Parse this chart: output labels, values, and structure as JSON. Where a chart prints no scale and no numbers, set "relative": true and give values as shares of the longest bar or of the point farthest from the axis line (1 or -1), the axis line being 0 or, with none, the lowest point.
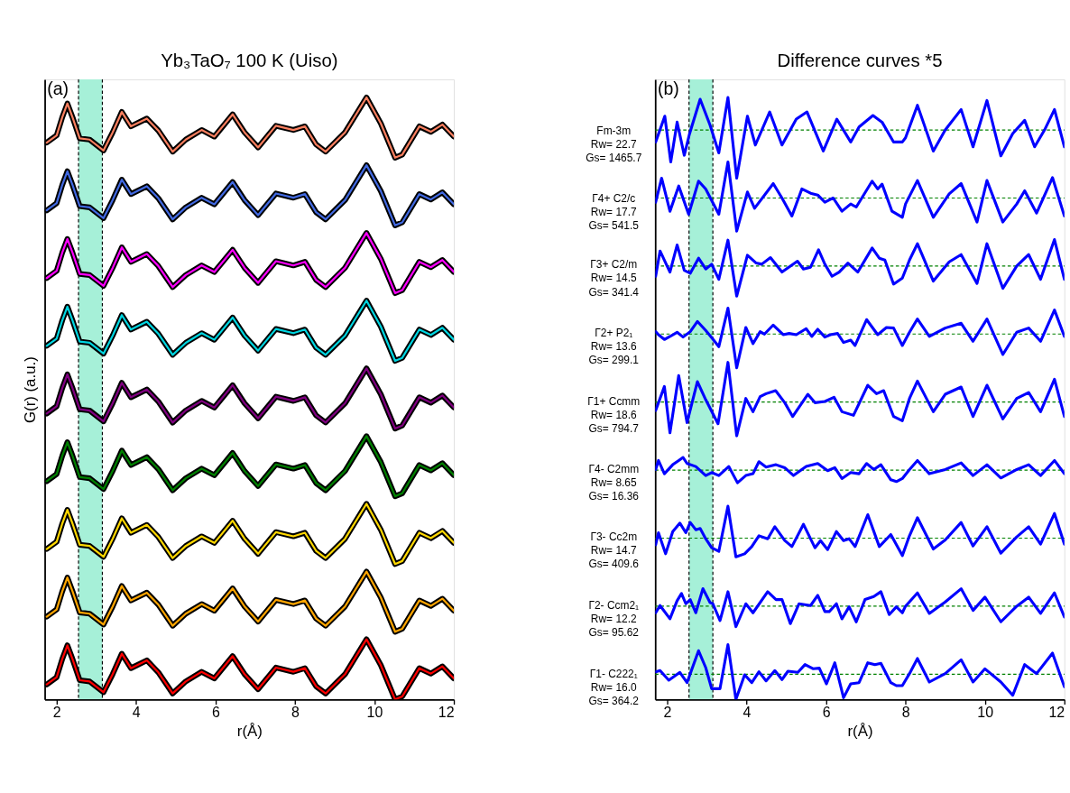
{
  "chart_data": [
    {
      "type": "line",
      "title": "Yb₃TaO₇ 100 K (Uiso)",
      "xlabel": "r(Å)",
      "ylabel": "G(r) (a.u.)",
      "relative": true,
      "xlim": [
        1.7,
        12
      ],
      "xticks": [
        2,
        4,
        6,
        8,
        10,
        12
      ],
      "annotations": [
        "(a)"
      ],
      "bands": [
        {
          "axis": "x",
          "from": 2.55,
          "to": 3.15,
          "color": "#a6f0d8"
        }
      ],
      "ref_lines": [
        {
          "axis": "x",
          "value": 2.55,
          "color": "#000000",
          "line_style": "dashed"
        },
        {
          "axis": "x",
          "value": 3.15,
          "color": "#000000",
          "line_style": "dashed"
        }
      ],
      "x": [
        1.75,
        2.0,
        2.14,
        2.27,
        2.4,
        2.58,
        2.83,
        3.18,
        3.41,
        3.64,
        3.87,
        4.27,
        4.56,
        4.92,
        5.25,
        5.65,
        5.97,
        6.43,
        6.73,
        7.07,
        7.52,
        7.96,
        8.25,
        8.53,
        8.77,
        9.26,
        9.8,
        10.16,
        10.52,
        10.7,
        11.13,
        11.42,
        11.71,
        12.0
      ],
      "series": [
        {
          "color": "#000000",
          "values": [
            0.925,
            0.937,
            0.967,
            0.99,
            0.967,
            0.932,
            0.93,
            0.912,
            0.942,
            0.976,
            0.952,
            0.965,
            0.945,
            0.91,
            0.93,
            0.946,
            0.935,
            0.972,
            0.942,
            0.917,
            0.953,
            0.946,
            0.952,
            0.922,
            0.91,
            0.942,
            1.0,
            0.957,
            0.9,
            0.905,
            0.952,
            0.943,
            0.955,
            0.935
          ]
        },
        {
          "color": "#fa7f5f",
          "values": [
            0.925,
            0.937,
            0.967,
            0.99,
            0.967,
            0.932,
            0.93,
            0.912,
            0.942,
            0.976,
            0.952,
            0.965,
            0.945,
            0.91,
            0.93,
            0.946,
            0.935,
            0.972,
            0.942,
            0.917,
            0.953,
            0.946,
            0.952,
            0.922,
            0.91,
            0.942,
            1.0,
            0.957,
            0.9,
            0.905,
            0.952,
            0.943,
            0.955,
            0.935
          ]
        },
        {
          "color": "#000000",
          "values": [
            0.8125,
            0.8245,
            0.8545,
            0.8775,
            0.8545,
            0.8195,
            0.8175,
            0.7995,
            0.8295,
            0.8635,
            0.8395,
            0.8525,
            0.8325,
            0.7975,
            0.8175,
            0.8335,
            0.8225,
            0.8595,
            0.8295,
            0.8045,
            0.8405,
            0.8335,
            0.8395,
            0.8095,
            0.7975,
            0.8295,
            0.8875,
            0.8445,
            0.7875,
            0.7925,
            0.8395,
            0.8305,
            0.8425,
            0.8225
          ]
        },
        {
          "color": "#4169e1",
          "values": [
            0.8125,
            0.8245,
            0.8545,
            0.8775,
            0.8545,
            0.8195,
            0.8175,
            0.7995,
            0.8295,
            0.8635,
            0.8395,
            0.8525,
            0.8325,
            0.7975,
            0.8175,
            0.8335,
            0.8225,
            0.8595,
            0.8295,
            0.8045,
            0.8405,
            0.8335,
            0.8395,
            0.8095,
            0.7975,
            0.8295,
            0.8875,
            0.8445,
            0.7875,
            0.7925,
            0.8395,
            0.8305,
            0.8425,
            0.8225
          ]
        },
        {
          "color": "#000000",
          "values": [
            0.7,
            0.712,
            0.742,
            0.765,
            0.742,
            0.707,
            0.705,
            0.687,
            0.717,
            0.751,
            0.727,
            0.74,
            0.72,
            0.685,
            0.705,
            0.721,
            0.71,
            0.747,
            0.717,
            0.692,
            0.728,
            0.721,
            0.727,
            0.697,
            0.685,
            0.717,
            0.775,
            0.732,
            0.675,
            0.68,
            0.727,
            0.718,
            0.73,
            0.71
          ]
        },
        {
          "color": "#ff00ff",
          "values": [
            0.7,
            0.712,
            0.742,
            0.765,
            0.742,
            0.707,
            0.705,
            0.687,
            0.717,
            0.751,
            0.727,
            0.74,
            0.72,
            0.685,
            0.705,
            0.721,
            0.71,
            0.747,
            0.717,
            0.692,
            0.728,
            0.721,
            0.727,
            0.697,
            0.685,
            0.717,
            0.775,
            0.732,
            0.675,
            0.68,
            0.727,
            0.718,
            0.73,
            0.71
          ]
        },
        {
          "color": "#000000",
          "values": [
            0.5875,
            0.5995,
            0.6295,
            0.6525,
            0.6295,
            0.5945,
            0.5925,
            0.5745,
            0.6045,
            0.6385,
            0.6145,
            0.6275,
            0.6075,
            0.5725,
            0.5925,
            0.6085,
            0.5975,
            0.6345,
            0.6045,
            0.5795,
            0.6155,
            0.6085,
            0.6145,
            0.5845,
            0.5725,
            0.6045,
            0.6625,
            0.6195,
            0.5625,
            0.5675,
            0.6145,
            0.6055,
            0.6175,
            0.5975
          ]
        },
        {
          "color": "#00d5e0",
          "values": [
            0.5875,
            0.5995,
            0.6295,
            0.6525,
            0.6295,
            0.5945,
            0.5925,
            0.5745,
            0.6045,
            0.6385,
            0.6145,
            0.6275,
            0.6075,
            0.5725,
            0.5925,
            0.6085,
            0.5975,
            0.6345,
            0.6045,
            0.5795,
            0.6155,
            0.6085,
            0.6145,
            0.5845,
            0.5725,
            0.6045,
            0.6625,
            0.6195,
            0.5625,
            0.5675,
            0.6145,
            0.6055,
            0.6175,
            0.5975
          ]
        },
        {
          "color": "#000000",
          "values": [
            0.475,
            0.487,
            0.517,
            0.54,
            0.517,
            0.482,
            0.48,
            0.462,
            0.492,
            0.526,
            0.502,
            0.515,
            0.495,
            0.46,
            0.48,
            0.496,
            0.485,
            0.522,
            0.492,
            0.467,
            0.503,
            0.496,
            0.502,
            0.472,
            0.46,
            0.492,
            0.55,
            0.507,
            0.45,
            0.455,
            0.502,
            0.493,
            0.505,
            0.485
          ]
        },
        {
          "color": "#800080",
          "values": [
            0.475,
            0.487,
            0.517,
            0.54,
            0.517,
            0.482,
            0.48,
            0.462,
            0.492,
            0.526,
            0.502,
            0.515,
            0.495,
            0.46,
            0.48,
            0.496,
            0.485,
            0.522,
            0.492,
            0.467,
            0.503,
            0.496,
            0.502,
            0.472,
            0.46,
            0.492,
            0.55,
            0.507,
            0.45,
            0.455,
            0.502,
            0.493,
            0.505,
            0.485
          ]
        },
        {
          "color": "#000000",
          "values": [
            0.3625,
            0.3745,
            0.4045,
            0.4275,
            0.4045,
            0.3695,
            0.3675,
            0.3495,
            0.3795,
            0.4135,
            0.3895,
            0.4025,
            0.3825,
            0.3475,
            0.3675,
            0.3835,
            0.3725,
            0.4095,
            0.3795,
            0.3545,
            0.3905,
            0.3835,
            0.3895,
            0.3595,
            0.3475,
            0.3795,
            0.4375,
            0.3945,
            0.3375,
            0.3425,
            0.3895,
            0.3805,
            0.3925,
            0.3725
          ]
        },
        {
          "color": "#008000",
          "values": [
            0.3625,
            0.3745,
            0.4045,
            0.4275,
            0.4045,
            0.3695,
            0.3675,
            0.3495,
            0.3795,
            0.4135,
            0.3895,
            0.4025,
            0.3825,
            0.3475,
            0.3675,
            0.3835,
            0.3725,
            0.4095,
            0.3795,
            0.3545,
            0.3905,
            0.3835,
            0.3895,
            0.3595,
            0.3475,
            0.3795,
            0.4375,
            0.3945,
            0.3375,
            0.3425,
            0.3895,
            0.3805,
            0.3925,
            0.3725
          ]
        },
        {
          "color": "#000000",
          "values": [
            0.25,
            0.262,
            0.292,
            0.315,
            0.292,
            0.257,
            0.255,
            0.237,
            0.267,
            0.301,
            0.277,
            0.29,
            0.27,
            0.235,
            0.255,
            0.271,
            0.26,
            0.297,
            0.267,
            0.242,
            0.278,
            0.271,
            0.277,
            0.247,
            0.235,
            0.267,
            0.325,
            0.282,
            0.225,
            0.23,
            0.277,
            0.268,
            0.28,
            0.26
          ]
        },
        {
          "color": "#ffd700",
          "values": [
            0.25,
            0.262,
            0.292,
            0.315,
            0.292,
            0.257,
            0.255,
            0.237,
            0.267,
            0.301,
            0.277,
            0.29,
            0.27,
            0.235,
            0.255,
            0.271,
            0.26,
            0.297,
            0.267,
            0.242,
            0.278,
            0.271,
            0.277,
            0.247,
            0.235,
            0.267,
            0.325,
            0.282,
            0.225,
            0.23,
            0.277,
            0.268,
            0.28,
            0.26
          ]
        },
        {
          "color": "#000000",
          "values": [
            0.1375,
            0.1495,
            0.1795,
            0.2025,
            0.1795,
            0.1445,
            0.1425,
            0.1245,
            0.1545,
            0.1885,
            0.1645,
            0.1775,
            0.1575,
            0.1225,
            0.1425,
            0.1585,
            0.1475,
            0.1845,
            0.1545,
            0.1295,
            0.1655,
            0.1585,
            0.1645,
            0.1345,
            0.1225,
            0.1545,
            0.2125,
            0.1695,
            0.1125,
            0.1175,
            0.1645,
            0.1555,
            0.1675,
            0.1475
          ]
        },
        {
          "color": "#ffa500",
          "values": [
            0.1375,
            0.1495,
            0.1795,
            0.2025,
            0.1795,
            0.1445,
            0.1425,
            0.1245,
            0.1545,
            0.1885,
            0.1645,
            0.1775,
            0.1575,
            0.1225,
            0.1425,
            0.1585,
            0.1475,
            0.1845,
            0.1545,
            0.1295,
            0.1655,
            0.1585,
            0.1645,
            0.1345,
            0.1225,
            0.1545,
            0.2125,
            0.1695,
            0.1125,
            0.1175,
            0.1645,
            0.1555,
            0.1675,
            0.1475
          ]
        },
        {
          "color": "#000000",
          "values": [
            0.025,
            0.037,
            0.067,
            0.09,
            0.067,
            0.032,
            0.03,
            0.012,
            0.042,
            0.076,
            0.052,
            0.065,
            0.045,
            0.01,
            0.03,
            0.046,
            0.035,
            0.072,
            0.042,
            0.017,
            0.053,
            0.046,
            0.052,
            0.022,
            0.01,
            0.042,
            0.1,
            0.057,
            0.0,
            0.005,
            0.052,
            0.043,
            0.055,
            0.035
          ]
        },
        {
          "color": "#ff0000",
          "values": [
            0.025,
            0.037,
            0.067,
            0.09,
            0.067,
            0.032,
            0.03,
            0.012,
            0.042,
            0.076,
            0.052,
            0.065,
            0.045,
            0.01,
            0.03,
            0.046,
            0.035,
            0.072,
            0.042,
            0.017,
            0.053,
            0.046,
            0.052,
            0.022,
            0.01,
            0.042,
            0.1,
            0.057,
            0.0,
            0.005,
            0.052,
            0.043,
            0.055,
            0.035
          ]
        }
      ]
    },
    {
      "type": "line",
      "title": "Difference curves *5",
      "xlabel": "r(Å)",
      "relative": true,
      "xlim": [
        1.7,
        12
      ],
      "xticks": [
        2,
        4,
        6,
        8,
        10,
        12
      ],
      "annotations": [
        "(b)"
      ],
      "bands": [
        {
          "axis": "x",
          "from": 2.55,
          "to": 3.15,
          "color": "#a6f0d8"
        }
      ],
      "ref_lines": [
        {
          "axis": "x",
          "value": 2.55,
          "color": "#000000",
          "line_style": "dashed"
        },
        {
          "axis": "x",
          "value": 3.15,
          "color": "#000000",
          "line_style": "dashed"
        },
        {
          "axis": "y",
          "value": 0.946,
          "color": "#008000",
          "line_style": "dashed"
        },
        {
          "axis": "y",
          "value": 0.833,
          "color": "#008000",
          "line_style": "dashed"
        },
        {
          "axis": "y",
          "value": 0.72,
          "color": "#008000",
          "line_style": "dashed"
        },
        {
          "axis": "y",
          "value": 0.607,
          "color": "#008000",
          "line_style": "dashed"
        },
        {
          "axis": "y",
          "value": 0.494,
          "color": "#008000",
          "line_style": "dashed"
        },
        {
          "axis": "y",
          "value": 0.381,
          "color": "#008000",
          "line_style": "dashed"
        },
        {
          "axis": "y",
          "value": 0.268,
          "color": "#008000",
          "line_style": "dashed"
        },
        {
          "axis": "y",
          "value": 0.155,
          "color": "#008000",
          "line_style": "dashed"
        },
        {
          "axis": "y",
          "value": 0.042,
          "color": "#008000",
          "line_style": "dashed"
        }
      ],
      "series": [
        {
          "name": "Fm-3m\nRw= 22.7\nGs= 1465.7",
          "color": "#0000ff",
          "x": [
            1.71,
            1.94,
            2.09,
            2.25,
            2.43,
            2.56,
            2.83,
            3.08,
            3.3,
            3.53,
            3.75,
            4.02,
            4.22,
            4.58,
            4.89,
            5.25,
            5.52,
            5.93,
            6.27,
            6.62,
            6.83,
            7.18,
            7.41,
            7.7,
            7.92,
            8.0,
            8.3,
            8.7,
            9.0,
            9.4,
            9.7,
            10.05,
            10.4,
            10.7,
            11.0,
            11.25,
            11.5,
            11.75,
            12.0
          ],
          "values": [
            0.926,
            0.969,
            0.893,
            0.959,
            0.904,
            0.939,
            0.997,
            0.954,
            0.908,
            1.0,
            0.866,
            0.969,
            0.921,
            0.976,
            0.921,
            0.964,
            0.976,
            0.911,
            0.964,
            0.926,
            0.951,
            0.97,
            0.959,
            0.926,
            0.926,
            0.933,
            0.987,
            0.911,
            0.946,
            0.98,
            0.918,
            0.995,
            0.903,
            0.94,
            0.962,
            0.918,
            0.946,
            0.98,
            0.918
          ]
        },
        {
          "name": "Γ4+ C2/c\nRw= 17.7\nGs= 541.5",
          "color": "#0000ff",
          "x": [
            1.71,
            1.86,
            2.07,
            2.29,
            2.54,
            2.79,
            2.97,
            3.3,
            3.53,
            3.75,
            4.02,
            4.2,
            4.67,
            4.89,
            5.14,
            5.39,
            5.61,
            5.79,
            5.97,
            6.18,
            6.4,
            6.62,
            6.76,
            7.16,
            7.3,
            7.41,
            7.66,
            7.92,
            8.0,
            8.3,
            8.7,
            9.1,
            9.4,
            9.8,
            10.05,
            10.45,
            10.8,
            11.0,
            11.3,
            11.7,
            12.0
          ],
          "values": [
            0.826,
            0.866,
            0.811,
            0.853,
            0.806,
            0.861,
            0.848,
            0.806,
            0.893,
            0.778,
            0.843,
            0.816,
            0.857,
            0.833,
            0.803,
            0.848,
            0.841,
            0.838,
            0.826,
            0.833,
            0.811,
            0.823,
            0.818,
            0.861,
            0.848,
            0.856,
            0.811,
            0.801,
            0.823,
            0.862,
            0.801,
            0.84,
            0.857,
            0.793,
            0.862,
            0.793,
            0.823,
            0.845,
            0.808,
            0.867,
            0.803
          ]
        },
        {
          "name": "Γ3+ C2/m\nRw= 14.5\nGs= 341.4",
          "color": "#0000ff",
          "x": [
            1.71,
            1.82,
            2.07,
            2.25,
            2.43,
            2.58,
            2.79,
            2.97,
            3.12,
            3.3,
            3.53,
            3.75,
            4.02,
            4.24,
            4.38,
            4.6,
            4.89,
            5.28,
            5.43,
            5.61,
            5.81,
            5.97,
            6.15,
            6.33,
            6.55,
            6.8,
            7.16,
            7.34,
            7.48,
            7.7,
            7.92,
            8.1,
            8.3,
            8.7,
            9.1,
            9.4,
            9.8,
            10.05,
            10.45,
            10.8,
            11.1,
            11.4,
            11.75,
            12.0
          ],
          "values": [
            0.703,
            0.745,
            0.71,
            0.755,
            0.713,
            0.708,
            0.733,
            0.715,
            0.723,
            0.698,
            0.763,
            0.67,
            0.738,
            0.725,
            0.723,
            0.734,
            0.71,
            0.728,
            0.715,
            0.718,
            0.747,
            0.723,
            0.703,
            0.71,
            0.725,
            0.71,
            0.75,
            0.733,
            0.73,
            0.69,
            0.7,
            0.73,
            0.757,
            0.695,
            0.727,
            0.739,
            0.691,
            0.757,
            0.683,
            0.72,
            0.739,
            0.698,
            0.764,
            0.698
          ]
        },
        {
          "name": "Γ2+ P2₁\nRw= 13.6\nGs= 299.1",
          "color": "#0000ff",
          "x": [
            1.71,
            1.78,
            1.93,
            2.07,
            2.25,
            2.4,
            2.58,
            2.76,
            2.97,
            3.12,
            3.3,
            3.53,
            3.75,
            3.98,
            4.16,
            4.34,
            4.45,
            4.67,
            4.92,
            5.07,
            5.25,
            5.5,
            5.64,
            5.79,
            5.97,
            6.11,
            6.29,
            6.44,
            6.62,
            6.73,
            7.02,
            7.3,
            7.52,
            7.7,
            7.92,
            8.1,
            8.3,
            8.6,
            9.0,
            9.4,
            9.7,
            10.05,
            10.45,
            10.8,
            11.1,
            11.4,
            11.75,
            12.0
          ],
          "values": [
            0.611,
            0.606,
            0.598,
            0.603,
            0.61,
            0.602,
            0.611,
            0.628,
            0.613,
            0.601,
            0.586,
            0.65,
            0.551,
            0.618,
            0.591,
            0.611,
            0.607,
            0.622,
            0.606,
            0.608,
            0.606,
            0.616,
            0.603,
            0.615,
            0.602,
            0.606,
            0.608,
            0.593,
            0.597,
            0.588,
            0.631,
            0.606,
            0.618,
            0.617,
            0.588,
            0.61,
            0.632,
            0.603,
            0.617,
            0.625,
            0.595,
            0.632,
            0.573,
            0.61,
            0.617,
            0.595,
            0.647,
            0.603
          ]
        },
        {
          "name": "Γ1+ Ccmm\nRw= 18.6\nGs= 794.7",
          "color": "#0000ff",
          "x": [
            1.71,
            1.93,
            2.07,
            2.29,
            2.5,
            2.76,
            2.97,
            3.28,
            3.53,
            3.75,
            3.98,
            4.16,
            4.34,
            4.49,
            4.73,
            4.96,
            5.16,
            5.54,
            5.72,
            5.97,
            6.2,
            6.4,
            6.69,
            7.05,
            7.27,
            7.45,
            7.7,
            7.92,
            8.1,
            8.3,
            8.7,
            9.0,
            9.4,
            9.7,
            10.05,
            10.45,
            10.8,
            11.1,
            11.4,
            11.75,
            12.0
          ],
          "values": [
            0.48,
            0.52,
            0.443,
            0.538,
            0.46,
            0.528,
            0.498,
            0.458,
            0.56,
            0.438,
            0.5,
            0.478,
            0.503,
            0.508,
            0.513,
            0.493,
            0.47,
            0.507,
            0.493,
            0.495,
            0.502,
            0.478,
            0.472,
            0.522,
            0.508,
            0.513,
            0.47,
            0.463,
            0.5,
            0.529,
            0.478,
            0.507,
            0.519,
            0.47,
            0.522,
            0.466,
            0.5,
            0.51,
            0.478,
            0.532,
            0.47
          ]
        },
        {
          "name": "Γ4- C2mm\nRw= 8.65\nGs= 16.36",
          "color": "#0000ff",
          "x": [
            1.71,
            1.78,
            1.93,
            2.14,
            2.29,
            2.4,
            2.5,
            2.72,
            2.97,
            3.12,
            3.3,
            3.55,
            3.77,
            3.98,
            4.16,
            4.31,
            4.49,
            4.74,
            4.96,
            5.18,
            5.5,
            5.79,
            6.04,
            6.22,
            6.4,
            6.62,
            6.83,
            7.02,
            7.2,
            7.38,
            7.63,
            7.77,
            7.92,
            8.1,
            8.3,
            8.6,
            9.0,
            9.4,
            9.7,
            10.05,
            10.4,
            10.8,
            11.1,
            11.4,
            11.75,
            12.0
          ],
          "values": [
            0.382,
            0.397,
            0.375,
            0.39,
            0.397,
            0.402,
            0.392,
            0.387,
            0.372,
            0.377,
            0.372,
            0.387,
            0.36,
            0.372,
            0.375,
            0.395,
            0.386,
            0.39,
            0.385,
            0.372,
            0.387,
            0.392,
            0.38,
            0.385,
            0.367,
            0.377,
            0.375,
            0.392,
            0.382,
            0.39,
            0.365,
            0.362,
            0.367,
            0.382,
            0.397,
            0.375,
            0.382,
            0.393,
            0.372,
            0.39,
            0.368,
            0.382,
            0.39,
            0.372,
            0.397,
            0.375
          ]
        },
        {
          "name": "Γ3- Cc2m\nRw= 14.7\nGs= 409.6",
          "color": "#0000ff",
          "x": [
            1.71,
            1.78,
            1.96,
            2.14,
            2.32,
            2.47,
            2.58,
            2.72,
            2.83,
            2.97,
            3.12,
            3.3,
            3.53,
            3.73,
            3.95,
            4.13,
            4.31,
            4.53,
            4.71,
            4.96,
            5.14,
            5.43,
            5.72,
            5.86,
            6.04,
            6.26,
            6.44,
            6.58,
            6.73,
            7.05,
            7.34,
            7.63,
            7.92,
            8.1,
            8.3,
            8.7,
            9.0,
            9.4,
            9.7,
            10.05,
            10.4,
            10.8,
            11.1,
            11.4,
            11.75,
            12.0
          ],
          "values": [
            0.257,
            0.277,
            0.242,
            0.279,
            0.293,
            0.277,
            0.294,
            0.282,
            0.284,
            0.267,
            0.252,
            0.246,
            0.321,
            0.237,
            0.242,
            0.254,
            0.272,
            0.267,
            0.287,
            0.264,
            0.254,
            0.291,
            0.252,
            0.264,
            0.249,
            0.279,
            0.264,
            0.267,
            0.254,
            0.307,
            0.254,
            0.274,
            0.239,
            0.272,
            0.302,
            0.25,
            0.265,
            0.294,
            0.255,
            0.287,
            0.243,
            0.27,
            0.287,
            0.258,
            0.309,
            0.258
          ]
        },
        {
          "name": "Γ2- Ccm2₁\nRw= 12.2\nGs= 95.62",
          "color": "#0000ff",
          "x": [
            1.71,
            1.82,
            2.07,
            2.25,
            2.36,
            2.47,
            2.58,
            2.72,
            2.9,
            3.08,
            3.15,
            3.33,
            3.53,
            3.73,
            3.98,
            4.16,
            4.53,
            4.74,
            4.89,
            5.1,
            5.32,
            5.61,
            5.79,
            5.97,
            6.08,
            6.26,
            6.4,
            6.58,
            6.76,
            6.98,
            7.2,
            7.38,
            7.59,
            7.77,
            7.92,
            8.0,
            8.3,
            8.6,
            9.0,
            9.4,
            9.7,
            10.0,
            10.4,
            10.8,
            11.1,
            11.4,
            11.75,
            12.0
          ],
          "values": [
            0.144,
            0.156,
            0.134,
            0.164,
            0.176,
            0.159,
            0.166,
            0.144,
            0.184,
            0.161,
            0.159,
            0.131,
            0.179,
            0.121,
            0.159,
            0.144,
            0.179,
            0.166,
            0.166,
            0.126,
            0.159,
            0.156,
            0.173,
            0.146,
            0.146,
            0.159,
            0.134,
            0.154,
            0.129,
            0.166,
            0.171,
            0.179,
            0.141,
            0.154,
            0.144,
            0.155,
            0.177,
            0.143,
            0.162,
            0.184,
            0.148,
            0.17,
            0.129,
            0.155,
            0.17,
            0.143,
            0.177,
            0.137
          ]
        },
        {
          "name": "Γ1- C222₁\nRw= 16.0\nGs= 364.2",
          "color": "#0000ff",
          "x": [
            1.71,
            1.82,
            2.04,
            2.32,
            2.5,
            2.79,
            2.97,
            3.12,
            3.33,
            3.53,
            3.73,
            3.95,
            4.13,
            4.31,
            4.49,
            4.71,
            4.89,
            5.04,
            5.29,
            5.47,
            5.68,
            5.83,
            6.01,
            6.22,
            6.44,
            6.62,
            6.83,
            7.05,
            7.23,
            7.38,
            7.63,
            7.77,
            7.92,
            8.1,
            8.3,
            8.6,
            9.0,
            9.4,
            9.7,
            10.0,
            10.4,
            10.7,
            11.0,
            11.3,
            11.7,
            12.0
          ],
          "values": [
            0.046,
            0.048,
            0.032,
            0.045,
            0.028,
            0.081,
            0.053,
            0.018,
            0.018,
            0.091,
            0.0,
            0.041,
            0.028,
            0.046,
            0.031,
            0.048,
            0.033,
            0.047,
            0.045,
            0.058,
            0.051,
            0.052,
            0.026,
            0.061,
            0.003,
            0.026,
            0.028,
            0.061,
            0.058,
            0.06,
            0.028,
            0.023,
            0.023,
            0.043,
            0.068,
            0.029,
            0.043,
            0.066,
            0.029,
            0.051,
            0.029,
            0.007,
            0.058,
            0.043,
            0.077,
            0.021
          ]
        }
      ]
    }
  ]
}
